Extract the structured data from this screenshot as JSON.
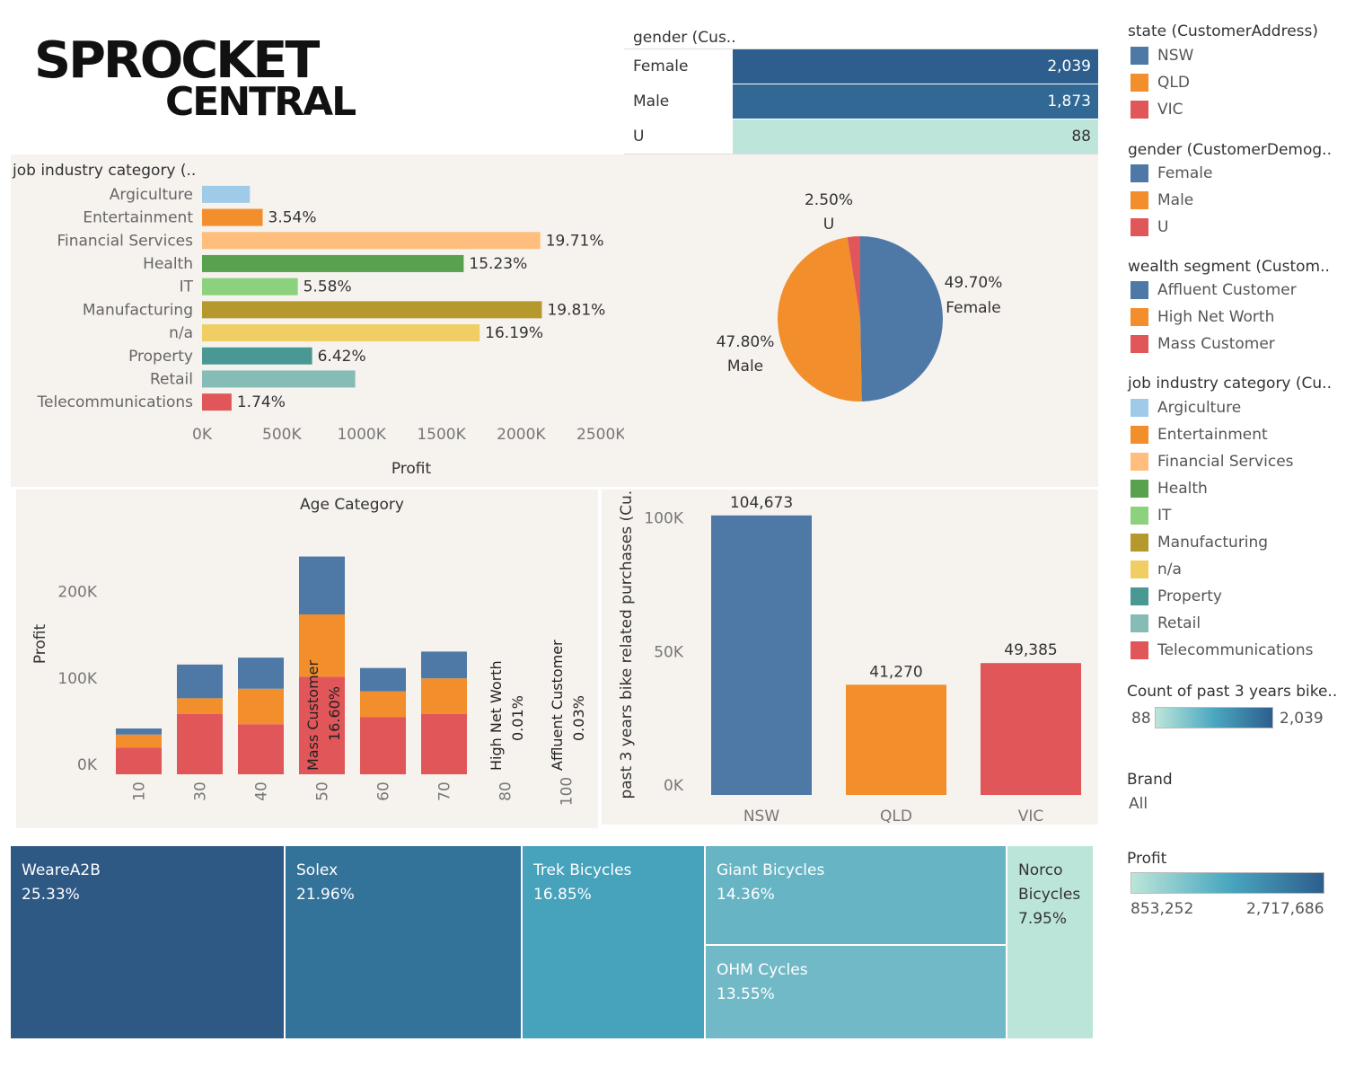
{
  "logo": {
    "line1": "SPROCKET",
    "line2": "CENTRAL"
  },
  "gender_table": {
    "header": "gender (Cus..",
    "rows": [
      {
        "label": "Female",
        "value": "2,039",
        "color": "#2d5e8e"
      },
      {
        "label": "Male",
        "value": "1,873",
        "color": "#316894"
      },
      {
        "label": "U",
        "value": "88",
        "color": "#bde5d9"
      }
    ]
  },
  "colors": {
    "panel_bg": "#f6f2ee",
    "nsw": "#4e79a7",
    "qld": "#f28e2b",
    "vic": "#e15759",
    "affluent": "#4e79a7",
    "high_net_worth": "#f28e2b",
    "mass": "#e15759"
  },
  "legends": {
    "state": {
      "title": "state (CustomerAddress)",
      "items": [
        {
          "label": "NSW",
          "color": "#4e79a7"
        },
        {
          "label": "QLD",
          "color": "#f28e2b"
        },
        {
          "label": "VIC",
          "color": "#e15759"
        }
      ]
    },
    "gender": {
      "title": "gender (CustomerDemog..",
      "items": [
        {
          "label": "Female",
          "color": "#4e79a7"
        },
        {
          "label": "Male",
          "color": "#f28e2b"
        },
        {
          "label": "U",
          "color": "#e15759"
        }
      ]
    },
    "wealth": {
      "title": "wealth segment (Custom..",
      "items": [
        {
          "label": "Affluent Customer",
          "color": "#4e79a7"
        },
        {
          "label": "High Net Worth",
          "color": "#f28e2b"
        },
        {
          "label": "Mass Customer",
          "color": "#e15759"
        }
      ]
    },
    "job": {
      "title": "job industry category (Cu..",
      "items": [
        {
          "label": "Argiculture",
          "color": "#a0cbe8"
        },
        {
          "label": "Entertainment",
          "color": "#f28e2b"
        },
        {
          "label": "Financial Services",
          "color": "#ffbe7d"
        },
        {
          "label": "Health",
          "color": "#59a14f"
        },
        {
          "label": "IT",
          "color": "#8cd17d"
        },
        {
          "label": "Manufacturing",
          "color": "#b6992d"
        },
        {
          "label": "n/a",
          "color": "#f1ce63"
        },
        {
          "label": "Property",
          "color": "#499894"
        },
        {
          "label": "Retail",
          "color": "#86bcb6"
        },
        {
          "label": "Telecommunications",
          "color": "#e15759"
        }
      ]
    },
    "count": {
      "title": "Count of past 3 years bike..",
      "min": "88",
      "max": "2,039"
    },
    "brand": {
      "title": "Brand",
      "value": "All"
    },
    "profit": {
      "title": "Profit",
      "min": "853,252",
      "max": "2,717,686"
    }
  },
  "chart_data": [
    {
      "type": "bar",
      "orientation": "horizontal",
      "title": "job industry category (..",
      "xlabel": "Profit",
      "categories": [
        "Argiculture",
        "Entertainment",
        "Financial Services",
        "Health",
        "IT",
        "Manufacturing",
        "n/a",
        "Property",
        "Retail",
        "Telecommunications"
      ],
      "values": [
        300000,
        380000,
        2120000,
        1640000,
        600000,
        2130000,
        1740000,
        690000,
        960000,
        185000
      ],
      "labels": [
        "",
        "3.54%",
        "19.71%",
        "15.23%",
        "5.58%",
        "19.81%",
        "16.19%",
        "6.42%",
        "",
        "1.74%"
      ],
      "colors": [
        "#a0cbe8",
        "#f28e2b",
        "#ffbe7d",
        "#59a14f",
        "#8cd17d",
        "#b6992d",
        "#f1ce63",
        "#499894",
        "#86bcb6",
        "#e15759"
      ],
      "xticks": [
        0,
        500000,
        1000000,
        1500000,
        2000000,
        2500000
      ],
      "xtick_labels": [
        "0K",
        "500K",
        "1000K",
        "1500K",
        "2000K",
        "2500K"
      ],
      "xlim": [
        0,
        2600000
      ]
    },
    {
      "type": "pie",
      "slices": [
        {
          "name": "Female",
          "percent": 49.7,
          "label": "49.70%",
          "color": "#4e79a7"
        },
        {
          "name": "Male",
          "percent": 47.8,
          "label": "47.80%",
          "color": "#f28e2b"
        },
        {
          "name": "U",
          "percent": 2.5,
          "label": "2.50%",
          "color": "#e15759"
        }
      ]
    },
    {
      "type": "bar",
      "stacked": true,
      "title": "Age Category",
      "ylabel": "Profit",
      "categories": [
        "10",
        "30",
        "40",
        "50",
        "60",
        "70",
        "80",
        "100"
      ],
      "series": [
        {
          "name": "Mass Customer",
          "color": "#e15759",
          "values": [
            31000,
            70000,
            58000,
            113000,
            66000,
            70000,
            0,
            0
          ]
        },
        {
          "name": "High Net Worth",
          "color": "#f28e2b",
          "values": [
            15000,
            18000,
            41000,
            72000,
            30000,
            41000,
            0,
            0
          ]
        },
        {
          "name": "Affluent Customer",
          "color": "#4e79a7",
          "values": [
            7000,
            39000,
            36000,
            67000,
            27000,
            31000,
            0,
            0
          ]
        }
      ],
      "annotations": [
        {
          "category": "50",
          "text1": "Mass Customer",
          "text2": "16.60%"
        },
        {
          "category": "80",
          "text1": "High Net Worth",
          "text2": "0.01%"
        },
        {
          "category": "100",
          "text1": "Affluent Customer",
          "text2": "0.03%"
        }
      ],
      "yticks": [
        0,
        100000,
        200000
      ],
      "ytick_labels": [
        "0K",
        "100K",
        "200K"
      ],
      "ylim": [
        0,
        290000
      ]
    },
    {
      "type": "bar",
      "ylabel": "past 3 years bike related purchases (Cu..",
      "categories": [
        "NSW",
        "QLD",
        "VIC"
      ],
      "values": [
        104673,
        41270,
        49385
      ],
      "value_labels": [
        "104,673",
        "41,270",
        "49,385"
      ],
      "colors": [
        "#4e79a7",
        "#f28e2b",
        "#e15759"
      ],
      "yticks": [
        0,
        50000,
        100000
      ],
      "ytick_labels": [
        "0K",
        "50K",
        "100K"
      ],
      "ylim": [
        0,
        111000
      ]
    },
    {
      "type": "treemap",
      "items": [
        {
          "name": "WeareA2B",
          "percent": "25.33%",
          "color": "#2e5985"
        },
        {
          "name": "Solex",
          "percent": "21.96%",
          "color": "#33739a"
        },
        {
          "name": "Trek Bicycles",
          "percent": "16.85%",
          "color": "#47a2bb"
        },
        {
          "name": "Giant Bicycles",
          "percent": "14.36%",
          "color": "#67b4c4"
        },
        {
          "name": "OHM Cycles",
          "percent": "13.55%",
          "color": "#72b9c7"
        },
        {
          "name": "Norco Bicycles",
          "percent": "7.95%",
          "color": "#bce5da"
        }
      ]
    }
  ]
}
